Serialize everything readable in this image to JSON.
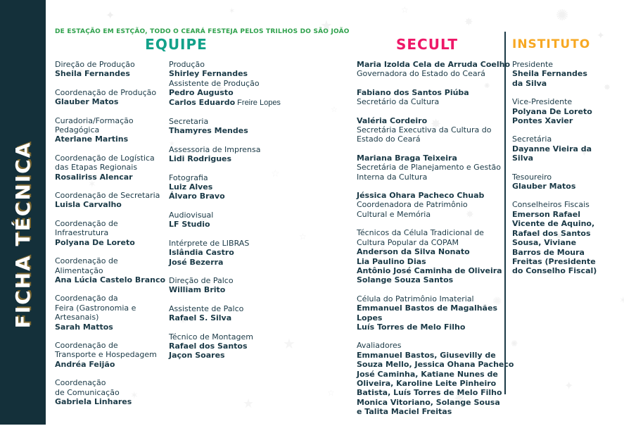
{
  "page": {
    "sidebar_title": "FICHA TÉCNICA",
    "tagline": "DE ESTAÇÃO EM ESTÇÃO, TODO O CEARÁ FESTEJA PELOS TRILHOS DO SÃO JOÃO"
  },
  "colors": {
    "text": "#1b3a47",
    "sidebar_bg": "#14303a",
    "tagline_green": "#2fa14c",
    "equipe_teal": "#12a189",
    "secult_pink": "#ee1868",
    "instituto_orange": "#f7a823"
  },
  "sections": {
    "equipe": {
      "heading": "EQUIPE",
      "columns": [
        [
          [
            {
              "n": "Direção de Produção"
            },
            {
              "b": "Sheila Fernandes"
            }
          ],
          [
            {
              "n": "Coordenação de Produção"
            },
            {
              "b": "Glauber Matos"
            }
          ],
          [
            {
              "n": "Curadoria/Formação"
            },
            {
              "n": "Pedagógica"
            },
            {
              "b": "Aterlane Martins"
            }
          ],
          [
            {
              "n": "Coordenação de Logística"
            },
            {
              "n": "das Etapas Regionais"
            },
            {
              "b": "Rosaliriss Alencar"
            }
          ],
          [
            {
              "n": "Coordenação de Secretaria"
            },
            {
              "b": "Luisla Carvalho"
            }
          ],
          [
            {
              "n": "Coordenação de"
            },
            {
              "n": "Infraestrutura"
            },
            {
              "b": "Polyana De Loreto"
            }
          ],
          [
            {
              "n": "Coordenação de"
            },
            {
              "n": "Alimentação"
            },
            {
              "b": "Ana Lúcia Castelo Branco"
            }
          ],
          [
            {
              "n": "Coordenação da"
            },
            {
              "n": "Feira (Gastronomia e"
            },
            {
              "n": "Artesanais)"
            },
            {
              "b": "Sarah Mattos"
            }
          ],
          [
            {
              "n": "Coordenação de"
            },
            {
              "n": "Transporte e Hospedagem"
            },
            {
              "b": "Andréa Feijão"
            }
          ],
          [
            {
              "n": "Coordenação"
            },
            {
              "n": "de Comunicação"
            },
            {
              "b": "Gabriela Linhares"
            }
          ]
        ],
        [
          [
            {
              "n": "Produção"
            },
            {
              "b": "Shirley Fernandes"
            },
            {
              "n": "Assistente de Produção"
            },
            {
              "b": "Pedro Augusto"
            },
            {
              "b": "Carlos Eduardo",
              "n": " Freire Lopes"
            }
          ],
          [
            {
              "n": "Secretaria"
            },
            {
              "b": "Thamyres Mendes"
            }
          ],
          [
            {
              "n": "Assessoria de Imprensa"
            },
            {
              "b": "Lidi Rodrigues"
            }
          ],
          [
            {
              "n": "Fotografia"
            },
            {
              "b": "Luiz Alves"
            },
            {
              "b": "Álvaro Bravo"
            }
          ],
          [
            {
              "n": "Audiovisual"
            },
            {
              "b": "LF Studio"
            }
          ],
          [
            {
              "n": "Intérprete de LIBRAS"
            },
            {
              "b": "Islândia Castro"
            },
            {
              "b": "José Bezerra"
            }
          ],
          [
            {
              "n": "Direção de Palco"
            },
            {
              "b": "William Brito"
            }
          ],
          [
            {
              "n": "Assistente de Palco"
            },
            {
              "b": "Rafael S. Silva"
            }
          ],
          [
            {
              "n": "Técnico de Montagem"
            },
            {
              "b": "Rafael dos Santos"
            },
            {
              "b": "Jaçon Soares"
            }
          ]
        ]
      ]
    },
    "secult": {
      "heading": "SECULT",
      "entries": [
        [
          {
            "b": "Maria Izolda Cela de Arruda Coelho"
          },
          {
            "n": "Governadora do Estado do Ceará"
          }
        ],
        [
          {
            "b": "Fabiano dos Santos Piúba"
          },
          {
            "n": "Secretário da Cultura"
          }
        ],
        [
          {
            "b": "Valéria Cordeiro"
          },
          {
            "n": "Secretária Executiva da Cultura do"
          },
          {
            "n": "Estado do Ceará"
          }
        ],
        [
          {
            "b": "Mariana Braga Teixeira"
          },
          {
            "n": "Secretária de Planejamento e Gestão"
          },
          {
            "n": "Interna da Cultura"
          }
        ],
        [
          {
            "b": "Jéssica Ohara Pacheco Chuab"
          },
          {
            "n": "Coordenadora de Patrimônio"
          },
          {
            "n": "Cultural e Memória"
          }
        ],
        [
          {
            "n": "Técnicos da Célula Tradicional de"
          },
          {
            "n": "Cultura Popular da COPAM"
          },
          {
            "b": "Anderson da Silva Nonato"
          },
          {
            "b": "Lia Paulino Dias"
          },
          {
            "b": "Antônio José Caminha de Oliveira"
          },
          {
            "b": "Solange Souza Santos"
          }
        ],
        [
          {
            "n": "Célula do Patrimônio Imaterial"
          },
          {
            "b": "Emmanuel Bastos de Magalhães"
          },
          {
            "b": "Lopes"
          },
          {
            "b": "Luís Torres de Melo Filho"
          }
        ],
        [
          {
            "n": "Avaliadores"
          },
          {
            "b": "Emmanuel Bastos, Giusevilly de"
          },
          {
            "b": "Souza Mello, Jessica Ohana Pacheco"
          },
          {
            "b": "José Caminha, Katiane Nunes de"
          },
          {
            "b": "Oliveira, Karoline Leite Pinheiro"
          },
          {
            "b": "Batista, Luís Torres de Melo Filho"
          },
          {
            "b": "Monica Vitoriano, Solange Sousa"
          },
          {
            "b": "e Talita Maciel Freitas"
          }
        ]
      ]
    },
    "instituto": {
      "heading": "INSTITUTO",
      "entries": [
        [
          {
            "n": "Presidente"
          },
          {
            "b": "Sheila Fernandes"
          },
          {
            "b": "da Silva"
          }
        ],
        [
          {
            "n": "Vice-Presidente"
          },
          {
            "b": "Polyana De Loreto"
          },
          {
            "b": "Pontes Xavier"
          }
        ],
        [
          {
            "n": "Secretária"
          },
          {
            "b": "Dayanne Vieira da"
          },
          {
            "b": "Silva"
          }
        ],
        [
          {
            "n": "Tesoureiro"
          },
          {
            "b": "Glauber Matos"
          }
        ],
        [
          {
            "n": "Conselheiros Fiscais"
          },
          {
            "b": "Emerson Rafael"
          },
          {
            "b": "Vicente de Aquino,"
          },
          {
            "b": "Rafael dos Santos"
          },
          {
            "b": "Sousa, Viviane"
          },
          {
            "b": "Barros de Moura"
          },
          {
            "b": "Freitas (Presidente"
          },
          {
            "b": "do Conselho Fiscal)"
          }
        ]
      ]
    }
  },
  "decor": {
    "star_glyphs": [
      "✦",
      "✶",
      "★",
      "☆",
      "✸",
      "✺"
    ]
  }
}
